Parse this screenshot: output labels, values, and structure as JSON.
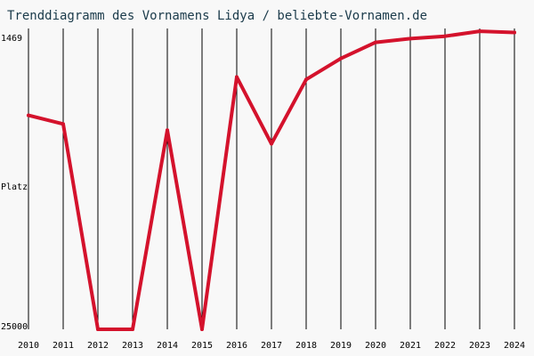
{
  "chart_data": {
    "type": "line",
    "title": "Trenddiagramm des Vornamens Lidya / beliebte-Vornamen.de",
    "xlabel": "",
    "ylabel": "Platz",
    "y_axis_inverted": true,
    "ylim": [
      1469,
      25000
    ],
    "y_tick_labels": [
      "1469",
      "25000"
    ],
    "x": [
      "2010",
      "2011",
      "2012",
      "2013",
      "2014",
      "2015",
      "2016",
      "2017",
      "2018",
      "2019",
      "2020",
      "2021",
      "2022",
      "2023",
      "2024"
    ],
    "series": [
      {
        "values": [
          7700,
          8400,
          25000,
          25000,
          8900,
          25000,
          4600,
          10000,
          4800,
          3100,
          1800,
          1500,
          1300,
          900,
          1000
        ]
      }
    ],
    "grid": "vertical",
    "colors": {
      "line": "#d4122c",
      "grid": "#000000",
      "background": "#f8f8f8",
      "title": "#1a3a4a"
    }
  }
}
